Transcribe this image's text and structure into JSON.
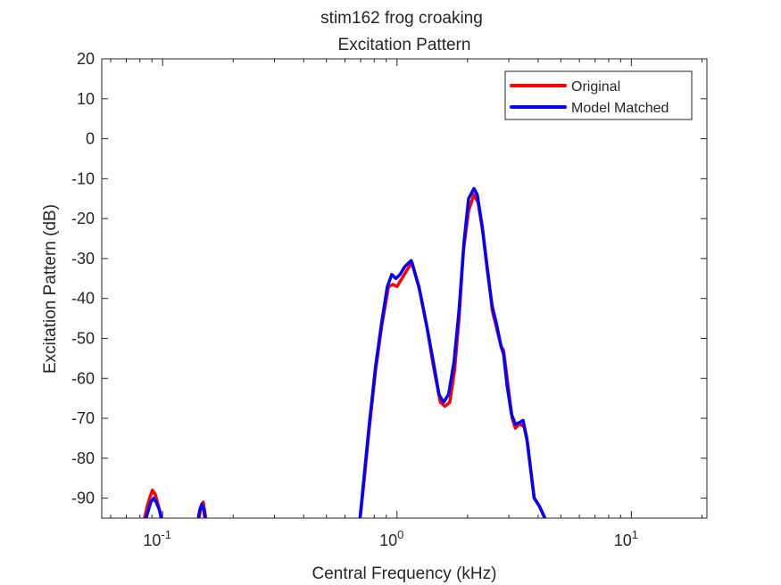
{
  "chart_data": {
    "type": "line",
    "title": "stim162 frog croaking",
    "subtitle": "Excitation Pattern",
    "xlabel": "Central Frequency (kHz)",
    "ylabel": "Excitation Pattern (dB)",
    "xscale": "log",
    "xlim": [
      0.055,
      21
    ],
    "ylim": [
      -95,
      20
    ],
    "grid": false,
    "legend_position": "top-right",
    "y_ticks": [
      20,
      10,
      0,
      -10,
      -20,
      -30,
      -40,
      -50,
      -60,
      -70,
      -80,
      -90
    ],
    "y_tick_labels": [
      "20",
      "10",
      "0",
      "-10",
      "-20",
      "-30",
      "-40",
      "-50",
      "-60",
      "-70",
      "-80",
      "-90"
    ],
    "x_ticks": [
      {
        "value": 0.1,
        "base": "10",
        "exp": "-1"
      },
      {
        "value": 1,
        "base": "10",
        "exp": "0"
      },
      {
        "value": 10,
        "base": "10",
        "exp": "1"
      }
    ],
    "series": [
      {
        "name": "Original",
        "color": "#ff0000",
        "segments": [
          [
            [
              0.083,
              -96
            ],
            [
              0.086,
              -92
            ],
            [
              0.088,
              -90
            ],
            [
              0.0905,
              -88
            ],
            [
              0.093,
              -89
            ],
            [
              0.096,
              -92
            ],
            [
              0.099,
              -95
            ],
            [
              0.101,
              -97
            ]
          ],
          [
            [
              0.142,
              -96
            ],
            [
              0.146,
              -92
            ],
            [
              0.149,
              -91
            ],
            [
              0.152,
              -94
            ],
            [
              0.155,
              -97
            ]
          ],
          [
            [
              0.69,
              -97
            ],
            [
              0.72,
              -87
            ],
            [
              0.76,
              -73
            ],
            [
              0.81,
              -58
            ],
            [
              0.86,
              -47
            ],
            [
              0.92,
              -37
            ],
            [
              0.96,
              -36.5
            ],
            [
              1.0,
              -37
            ],
            [
              1.05,
              -35
            ],
            [
              1.1,
              -33
            ],
            [
              1.16,
              -31
            ],
            [
              1.25,
              -38
            ],
            [
              1.34,
              -47
            ],
            [
              1.43,
              -57
            ],
            [
              1.53,
              -66
            ],
            [
              1.6,
              -67
            ],
            [
              1.68,
              -66
            ],
            [
              1.76,
              -58
            ],
            [
              1.84,
              -45
            ],
            [
              1.92,
              -28
            ],
            [
              2.02,
              -18
            ],
            [
              2.13,
              -14
            ],
            [
              2.22,
              -16
            ],
            [
              2.33,
              -24
            ],
            [
              2.45,
              -34
            ],
            [
              2.55,
              -43
            ],
            [
              2.65,
              -47
            ],
            [
              2.78,
              -52
            ],
            [
              2.85,
              -53
            ],
            [
              2.95,
              -60
            ],
            [
              3.1,
              -70
            ],
            [
              3.2,
              -72.5
            ],
            [
              3.32,
              -71.5
            ],
            [
              3.48,
              -72
            ],
            [
              3.6,
              -76
            ],
            [
              3.85,
              -90
            ],
            [
              4.05,
              -92
            ],
            [
              4.35,
              -96
            ]
          ]
        ]
      },
      {
        "name": "Model Matched",
        "color": "#0000ff",
        "segments": [
          [
            [
              0.084,
              -96
            ],
            [
              0.087,
              -93
            ],
            [
              0.089,
              -91
            ],
            [
              0.0915,
              -90
            ],
            [
              0.094,
              -91
            ],
            [
              0.097,
              -93
            ],
            [
              0.099,
              -95.5
            ],
            [
              0.101,
              -97
            ]
          ],
          [
            [
              0.141,
              -96
            ],
            [
              0.144,
              -93
            ],
            [
              0.147,
              -91.5
            ],
            [
              0.15,
              -93
            ],
            [
              0.153,
              -97
            ]
          ],
          [
            [
              0.69,
              -97
            ],
            [
              0.72,
              -86
            ],
            [
              0.76,
              -72
            ],
            [
              0.81,
              -57
            ],
            [
              0.86,
              -46
            ],
            [
              0.91,
              -37
            ],
            [
              0.95,
              -34
            ],
            [
              0.99,
              -35
            ],
            [
              1.03,
              -34
            ],
            [
              1.08,
              -32
            ],
            [
              1.15,
              -30.5
            ],
            [
              1.24,
              -37
            ],
            [
              1.34,
              -47
            ],
            [
              1.43,
              -56
            ],
            [
              1.51,
              -64
            ],
            [
              1.58,
              -66
            ],
            [
              1.66,
              -64
            ],
            [
              1.75,
              -56
            ],
            [
              1.84,
              -43
            ],
            [
              1.93,
              -26
            ],
            [
              2.02,
              -15
            ],
            [
              2.13,
              -12.5
            ],
            [
              2.2,
              -14
            ],
            [
              2.31,
              -22
            ],
            [
              2.43,
              -33
            ],
            [
              2.55,
              -42
            ],
            [
              2.65,
              -46
            ],
            [
              2.78,
              -52
            ],
            [
              2.85,
              -54
            ],
            [
              2.95,
              -62
            ],
            [
              3.08,
              -69
            ],
            [
              3.2,
              -71.5
            ],
            [
              3.35,
              -71
            ],
            [
              3.45,
              -70.5
            ],
            [
              3.58,
              -75
            ],
            [
              3.85,
              -90
            ],
            [
              4.05,
              -92
            ],
            [
              4.35,
              -96
            ]
          ]
        ]
      }
    ]
  }
}
